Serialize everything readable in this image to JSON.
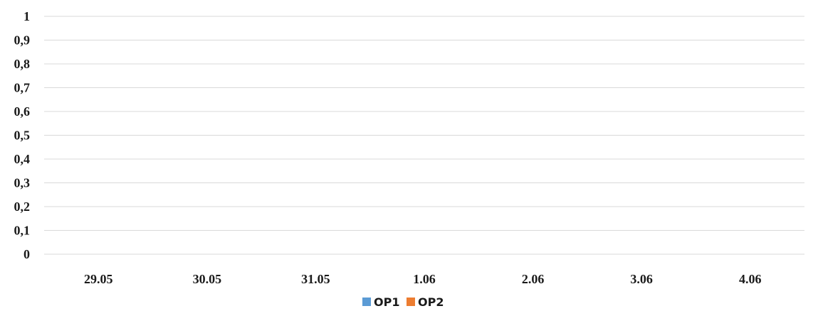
{
  "chart_data": {
    "type": "bar",
    "title": "",
    "xlabel": "",
    "ylabel": "",
    "categories": [
      "29.05",
      "30.05",
      "31.05",
      "1.06",
      "2.06",
      "3.06",
      "4.06"
    ],
    "series": [
      {
        "name": "OP1",
        "color": "#5b9bd5",
        "values": [
          0,
          0,
          0,
          0,
          0,
          0,
          0
        ]
      },
      {
        "name": "OP2",
        "color": "#ed7d31",
        "values": [
          0,
          0,
          0,
          0,
          0,
          0,
          0
        ]
      }
    ],
    "ylim": [
      0,
      1
    ],
    "yticks": [
      0,
      0.1,
      0.2,
      0.3,
      0.4,
      0.5,
      0.6,
      0.7,
      0.8,
      0.9,
      1
    ],
    "ytick_labels": [
      "0",
      "0,1",
      "0,2",
      "0,3",
      "0,4",
      "0,5",
      "0,6",
      "0,7",
      "0,8",
      "0,9",
      "1"
    ],
    "grid": true,
    "legend_position": "bottom-center"
  }
}
